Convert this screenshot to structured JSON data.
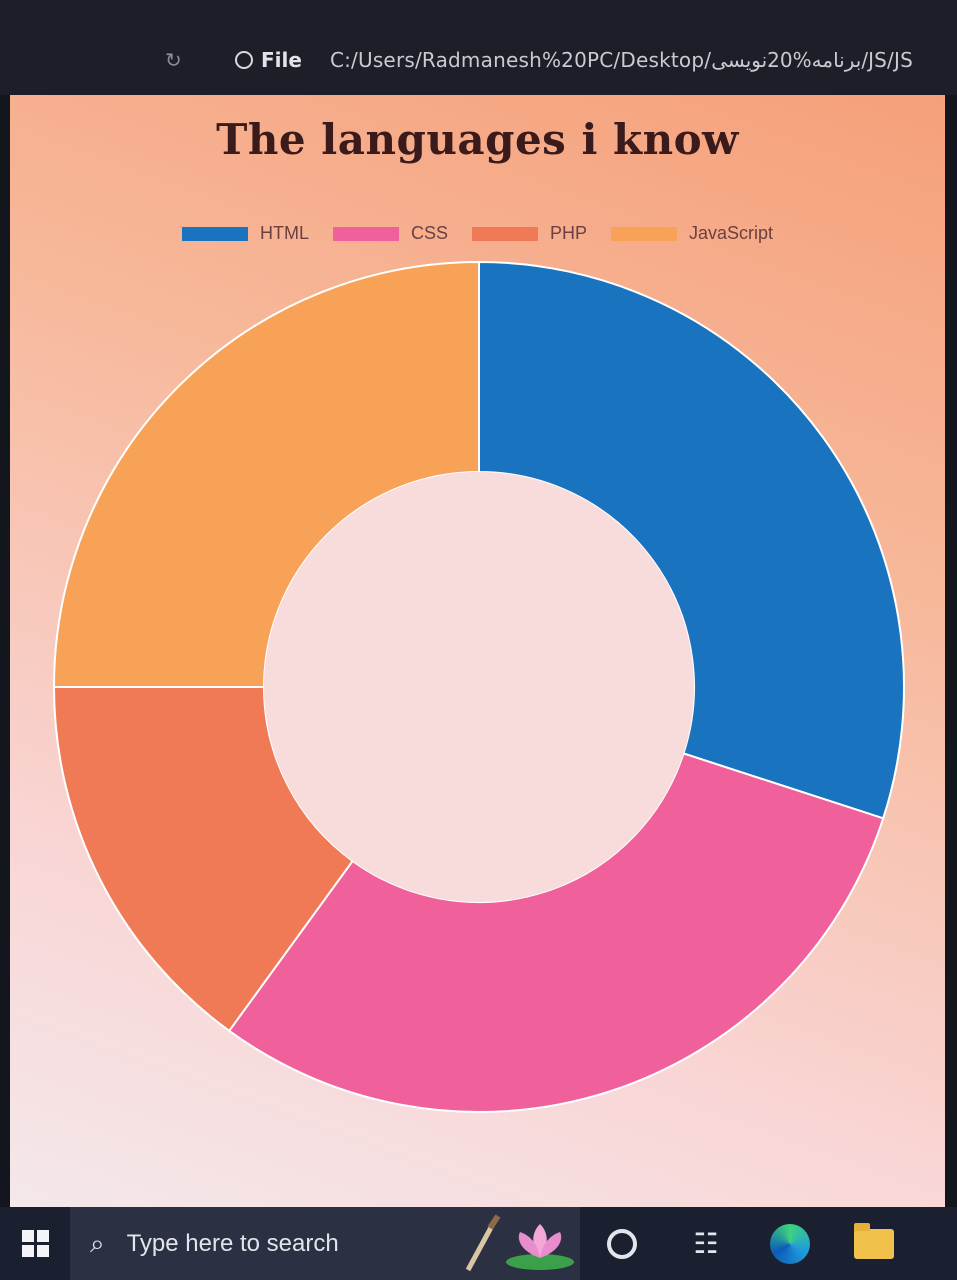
{
  "browser": {
    "file_label": "File",
    "url": "C:/Users/Radmanesh%20PC/Desktop/برنامه%20نویسی/JS/JS"
  },
  "taskbar": {
    "search_placeholder": "Type here to search"
  },
  "colors": {
    "HTML": "#1a73bf",
    "CSS": "#f0609a",
    "PHP": "#f07a55",
    "JavaScript": "#f7a256"
  },
  "chart_data": {
    "type": "doughnut",
    "title": "The languages i know",
    "legend_position": "top",
    "labels": [
      "HTML",
      "CSS",
      "PHP",
      "JavaScript"
    ],
    "values": [
      30,
      30,
      15,
      25
    ],
    "series_colors": [
      "#1a73bf",
      "#f0609a",
      "#f07a55",
      "#f7a256"
    ]
  }
}
